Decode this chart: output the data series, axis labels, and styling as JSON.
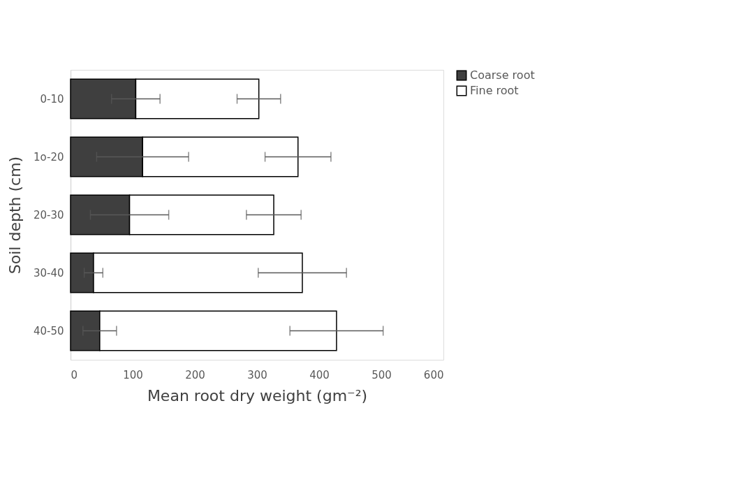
{
  "chart_data": {
    "type": "bar",
    "orientation": "horizontal",
    "stacked": true,
    "xlabel": "Mean root dry weight (gm⁻²)",
    "ylabel": "Soil depth (cm)",
    "categories": [
      "0-10",
      "1o-20",
      "20-30",
      "30-40",
      "40-50"
    ],
    "series": [
      {
        "name": "Coarse root",
        "color": "#3f3f3f",
        "values": [
          105,
          116,
          95,
          37,
          47
        ],
        "errors": [
          39,
          74,
          63,
          15,
          27
        ]
      },
      {
        "name": "Fine root",
        "color": "#ffffff",
        "values": [
          198,
          250,
          232,
          336,
          381
        ],
        "errors": [
          35,
          53,
          44,
          71,
          75
        ]
      }
    ],
    "xlim": [
      0,
      600
    ],
    "xticks": [
      0,
      100,
      200,
      300,
      400,
      500,
      600
    ],
    "grid": false,
    "legend": "top right"
  }
}
